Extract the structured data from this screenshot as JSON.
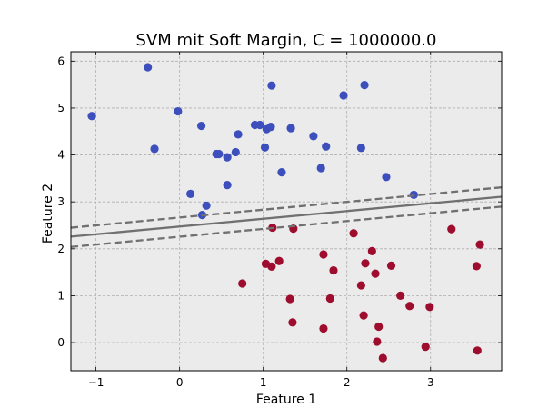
{
  "chart_data": {
    "type": "scatter",
    "title": "SVM mit Soft Margin, C = 1000000.0",
    "xlabel": "Feature 1",
    "ylabel": "Feature 2",
    "xlim": [
      -1.3,
      3.85
    ],
    "ylim": [
      -0.6,
      6.2
    ],
    "xticks": [
      -1,
      0,
      1,
      2,
      3
    ],
    "yticks": [
      0,
      1,
      2,
      3,
      4,
      5,
      6
    ],
    "grid": true,
    "background_color": "#ebebeb",
    "series": [
      {
        "color": "#3c4fbd",
        "points": [
          [
            -1.05,
            4.83
          ],
          [
            -0.38,
            5.87
          ],
          [
            -0.3,
            4.13
          ],
          [
            -0.02,
            4.93
          ],
          [
            0.26,
            4.62
          ],
          [
            0.13,
            3.17
          ],
          [
            0.27,
            2.72
          ],
          [
            0.32,
            2.92
          ],
          [
            0.44,
            4.02
          ],
          [
            0.47,
            4.02
          ],
          [
            0.57,
            3.95
          ],
          [
            0.57,
            3.36
          ],
          [
            0.67,
            4.06
          ],
          [
            0.7,
            4.44
          ],
          [
            0.9,
            4.64
          ],
          [
            0.96,
            4.64
          ],
          [
            1.02,
            4.16
          ],
          [
            1.04,
            4.55
          ],
          [
            1.09,
            4.6
          ],
          [
            1.1,
            5.48
          ],
          [
            1.22,
            3.63
          ],
          [
            1.33,
            4.57
          ],
          [
            1.6,
            4.4
          ],
          [
            1.69,
            3.72
          ],
          [
            1.75,
            4.18
          ],
          [
            1.96,
            5.27
          ],
          [
            2.17,
            4.15
          ],
          [
            2.21,
            5.49
          ],
          [
            2.47,
            3.53
          ],
          [
            2.8,
            3.15
          ]
        ]
      },
      {
        "color": "#9e0c2e",
        "points": [
          [
            0.75,
            1.26
          ],
          [
            1.03,
            1.68
          ],
          [
            1.1,
            1.62
          ],
          [
            1.11,
            2.45
          ],
          [
            1.19,
            1.74
          ],
          [
            1.32,
            0.93
          ],
          [
            1.35,
            0.43
          ],
          [
            1.36,
            2.43
          ],
          [
            1.72,
            1.88
          ],
          [
            1.72,
            0.3
          ],
          [
            1.8,
            0.94
          ],
          [
            1.84,
            1.54
          ],
          [
            2.08,
            2.33
          ],
          [
            2.17,
            1.22
          ],
          [
            2.2,
            0.58
          ],
          [
            2.22,
            1.69
          ],
          [
            2.3,
            1.95
          ],
          [
            2.34,
            1.47
          ],
          [
            2.36,
            0.02
          ],
          [
            2.38,
            0.34
          ],
          [
            2.43,
            -0.33
          ],
          [
            2.53,
            1.64
          ],
          [
            2.64,
            1.0
          ],
          [
            2.75,
            0.78
          ],
          [
            2.94,
            -0.09
          ],
          [
            2.99,
            0.76
          ],
          [
            3.25,
            2.42
          ],
          [
            3.55,
            1.63
          ],
          [
            3.56,
            -0.17
          ],
          [
            3.59,
            2.09
          ]
        ]
      }
    ],
    "decision_boundary": {
      "color": "#707070",
      "points": [
        [
          -1.3,
          2.26
        ],
        [
          3.85,
          3.11
        ]
      ]
    },
    "margins": {
      "color": "#707070",
      "style": "dashed",
      "lines": [
        [
          [
            -1.3,
            2.45
          ],
          [
            3.85,
            3.31
          ]
        ],
        [
          [
            -1.3,
            2.04
          ],
          [
            3.85,
            2.9
          ]
        ]
      ]
    }
  }
}
